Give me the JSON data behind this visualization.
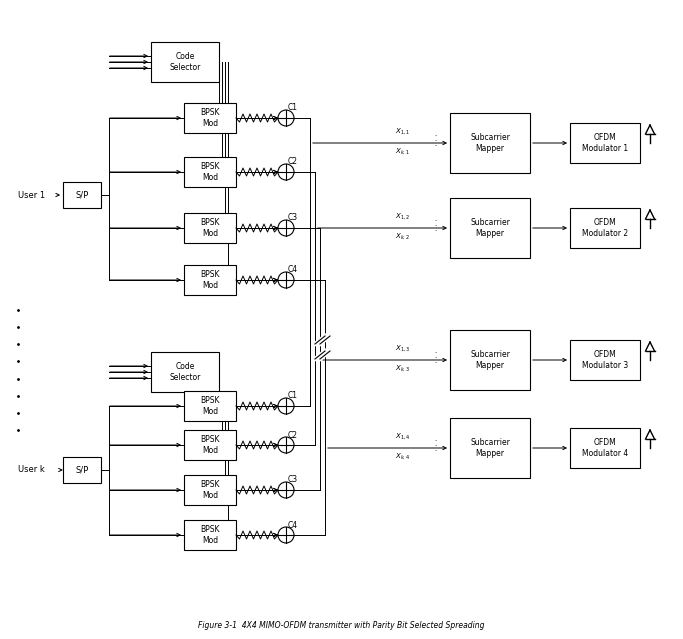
{
  "bg_color": "#ffffff",
  "fig_width": 6.83,
  "fig_height": 6.39,
  "dpi": 100,
  "user1_label": "User 1",
  "userk_label": "User k",
  "sp_label": "S/P",
  "code_selector_label": "Code\nSelector",
  "bpsk_mod_label": "BPSK\nMod",
  "subcarrier_mapper_label": "Subcarrier\nMapper",
  "ofdm_mod_labels": [
    "OFDM\nModulator 1",
    "OFDM\nModulator 2",
    "OFDM\nModulator 3",
    "OFDM\nModulator 4"
  ],
  "c_labels": [
    "C1",
    "C2",
    "C3",
    "C4"
  ],
  "caption": "Figure 3-1  4X4 MIMO-OFDM transmitter with Parity Bit Selected Spreading"
}
